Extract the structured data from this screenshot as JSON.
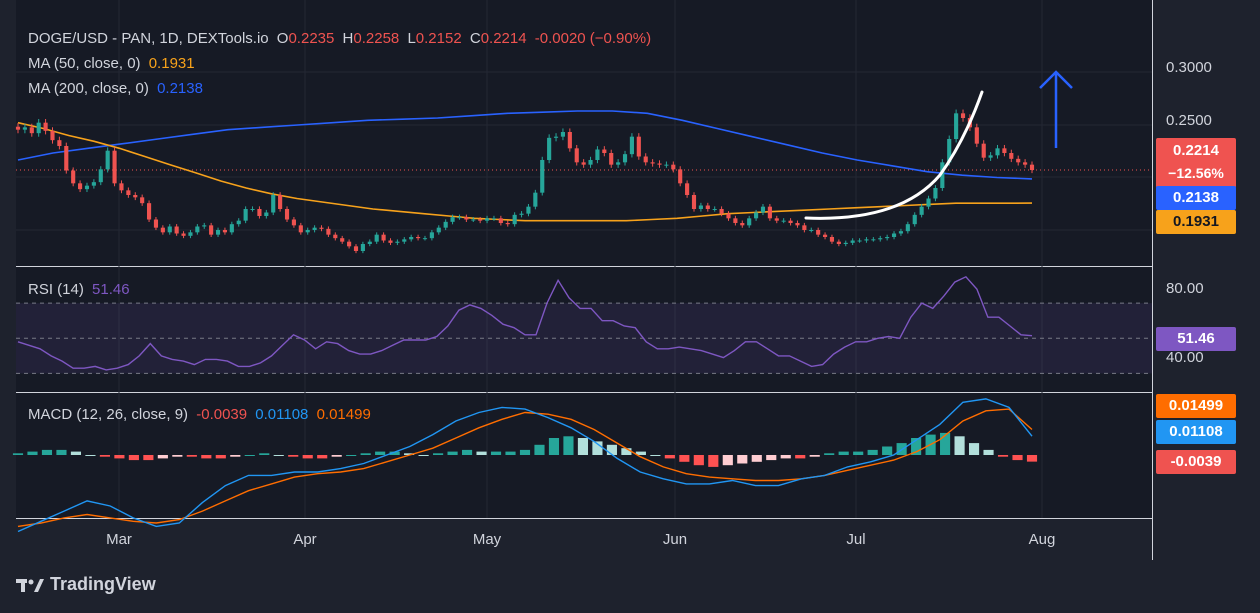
{
  "brand": "TradingView",
  "legend": {
    "symbol": "DOGE/USD - PAN, 1D, DEXTools.io",
    "o_label": "O",
    "o": "0.2235",
    "h_label": "H",
    "h": "0.2258",
    "l_label": "L",
    "l": "0.2152",
    "c_label": "C",
    "c": "0.2214",
    "change": "-0.0020 (−0.90%)",
    "ma50_label": "MA (50, close, 0)",
    "ma50": "0.1931",
    "ma200_label": "MA (200, close, 0)",
    "ma200": "0.2138",
    "rsi_label": "RSI (14)",
    "rsi": "51.46",
    "macd_label": "MACD (12, 26, close, 9)",
    "macd_hist": "-0.0039",
    "macd_line": "0.01108",
    "macd_signal": "0.01499"
  },
  "badges": {
    "price": "0.2214",
    "price_pct": "−12.56%",
    "ma200": "0.2138",
    "ma50": "0.1931",
    "rsi": "51.46",
    "macd_signal": "0.01499",
    "macd_line": "0.01108",
    "macd_hist": "-0.0039"
  },
  "colors": {
    "bg": "#1e222d",
    "up": "#26a69a",
    "down": "#ef5350",
    "ma50": "#f7a21b",
    "ma200": "#2962ff",
    "rsi": "#7e57c2",
    "macd": "#2196f3",
    "signal": "#ff6d00",
    "arrow": "#2962ff"
  },
  "chart_data": [
    {
      "type": "candlestick",
      "name": "DOGE/USD",
      "y_ticks": [
        "0.3000",
        "0.2500"
      ],
      "ylim": [
        0.14,
        0.35
      ],
      "x_ticks": [
        "Mar",
        "Apr",
        "May",
        "Jun",
        "Jul",
        "Aug"
      ],
      "close": [
        0.256,
        0.258,
        0.253,
        0.262,
        0.255,
        0.247,
        0.242,
        0.221,
        0.21,
        0.205,
        0.208,
        0.211,
        0.222,
        0.238,
        0.21,
        0.204,
        0.2,
        0.198,
        0.193,
        0.179,
        0.172,
        0.168,
        0.173,
        0.167,
        0.165,
        0.168,
        0.173,
        0.174,
        0.166,
        0.17,
        0.168,
        0.175,
        0.178,
        0.188,
        0.188,
        0.182,
        0.185,
        0.2,
        0.188,
        0.179,
        0.174,
        0.168,
        0.17,
        0.172,
        0.171,
        0.166,
        0.163,
        0.16,
        0.156,
        0.152,
        0.158,
        0.16,
        0.166,
        0.161,
        0.159,
        0.16,
        0.162,
        0.164,
        0.163,
        0.163,
        0.168,
        0.172,
        0.177,
        0.181,
        0.181,
        0.179,
        0.179,
        0.178,
        0.18,
        0.18,
        0.176,
        0.175,
        0.183,
        0.184,
        0.19,
        0.202,
        0.23,
        0.249,
        0.25,
        0.254,
        0.24,
        0.228,
        0.226,
        0.23,
        0.239,
        0.236,
        0.226,
        0.228,
        0.235,
        0.25,
        0.233,
        0.228,
        0.227,
        0.226,
        0.226,
        0.222,
        0.21,
        0.2,
        0.188,
        0.191,
        0.188,
        0.188,
        0.184,
        0.18,
        0.176,
        0.174,
        0.18,
        0.185,
        0.19,
        0.18,
        0.178,
        0.178,
        0.176,
        0.174,
        0.17,
        0.17,
        0.166,
        0.164,
        0.16,
        0.158,
        0.159,
        0.161,
        0.161,
        0.162,
        0.162,
        0.163,
        0.164,
        0.167,
        0.169,
        0.175,
        0.183,
        0.19,
        0.197,
        0.206,
        0.228,
        0.248,
        0.27,
        0.266,
        0.258,
        0.244,
        0.232,
        0.234,
        0.24,
        0.236,
        0.231,
        0.228,
        0.226,
        0.2214
      ],
      "ma50": [
        0.262,
        0.257,
        0.251,
        0.246,
        0.24,
        0.233,
        0.226,
        0.219,
        0.212,
        0.206,
        0.201,
        0.197,
        0.194,
        0.191,
        0.188,
        0.186,
        0.184,
        0.182,
        0.18,
        0.179,
        0.178,
        0.178,
        0.178,
        0.178,
        0.178,
        0.179,
        0.18,
        0.182,
        0.184,
        0.185,
        0.186,
        0.187,
        0.188,
        0.189,
        0.19,
        0.191,
        0.192,
        0.193,
        0.193,
        0.193,
        0.1931
      ],
      "ma200": [
        0.23,
        0.236,
        0.24,
        0.244,
        0.248,
        0.252,
        0.256,
        0.258,
        0.26,
        0.262,
        0.264,
        0.265,
        0.266,
        0.268,
        0.27,
        0.271,
        0.272,
        0.272,
        0.27,
        0.264,
        0.257,
        0.25,
        0.243,
        0.236,
        0.23,
        0.225,
        0.22,
        0.217,
        0.215,
        0.2138
      ],
      "annotations": [
        "rounded-bottom curve",
        "upward arrow"
      ]
    },
    {
      "type": "line",
      "name": "RSI (14)",
      "y_ticks": [
        "80.00",
        "40.00"
      ],
      "ylim": [
        20,
        90
      ],
      "bands": [
        30,
        50,
        70
      ],
      "values": [
        48,
        46,
        44,
        40,
        37,
        33,
        33,
        34,
        32,
        33,
        35,
        40,
        47,
        40,
        38,
        37,
        35,
        38,
        38,
        37,
        34,
        34,
        36,
        40,
        46,
        52,
        49,
        44,
        48,
        47,
        43,
        41,
        41,
        43,
        46,
        49,
        49,
        49,
        51,
        57,
        66,
        69,
        67,
        63,
        58,
        56,
        52,
        52,
        70,
        83,
        73,
        67,
        67,
        60,
        60,
        57,
        56,
        48,
        44,
        44,
        45,
        44,
        43,
        41,
        39,
        43,
        48,
        48,
        44,
        40,
        40,
        37,
        34,
        35,
        41,
        45,
        48,
        48,
        50,
        51,
        50,
        62,
        70,
        67,
        74,
        82,
        85,
        78,
        62,
        62,
        57,
        52,
        51.46
      ]
    },
    {
      "type": "bar+line",
      "name": "MACD (12, 26, close, 9)",
      "histogram": [
        0.001,
        0.002,
        0.003,
        0.003,
        0.002,
        0.0,
        -0.001,
        -0.002,
        -0.003,
        -0.003,
        -0.002,
        -0.001,
        -0.001,
        -0.002,
        -0.002,
        -0.001,
        0.0,
        0.001,
        0.0,
        -0.001,
        -0.002,
        -0.002,
        -0.001,
        0.0,
        0.001,
        0.002,
        0.002,
        0.001,
        0.0,
        0.001,
        0.002,
        0.003,
        0.002,
        0.002,
        0.002,
        0.003,
        0.006,
        0.01,
        0.011,
        0.01,
        0.008,
        0.006,
        0.004,
        0.002,
        0.0,
        -0.002,
        -0.004,
        -0.006,
        -0.007,
        -0.006,
        -0.005,
        -0.004,
        -0.003,
        -0.002,
        -0.002,
        -0.001,
        0.001,
        0.002,
        0.002,
        0.003,
        0.005,
        0.007,
        0.01,
        0.012,
        0.013,
        0.011,
        0.007,
        0.003,
        -0.001,
        -0.003,
        -0.0039
      ],
      "macd": [
        -0.045,
        -0.039,
        -0.033,
        -0.027,
        -0.03,
        -0.037,
        -0.042,
        -0.04,
        -0.028,
        -0.018,
        -0.012,
        -0.012,
        -0.01,
        -0.01,
        -0.008,
        -0.005,
        0.0,
        0.005,
        0.012,
        0.02,
        0.025,
        0.028,
        0.027,
        0.022,
        0.016,
        0.008,
        -0.002,
        -0.01,
        -0.014,
        -0.017,
        -0.017,
        -0.015,
        -0.018,
        -0.018,
        -0.014,
        -0.012,
        -0.007,
        -0.004,
        0.0,
        0.009,
        0.018,
        0.031,
        0.033,
        0.028,
        0.01108
      ],
      "signal": [
        -0.042,
        -0.04,
        -0.037,
        -0.035,
        -0.037,
        -0.039,
        -0.04,
        -0.038,
        -0.033,
        -0.027,
        -0.021,
        -0.017,
        -0.013,
        -0.011,
        -0.01,
        -0.008,
        -0.004,
        0.0,
        0.004,
        0.01,
        0.016,
        0.021,
        0.025,
        0.024,
        0.021,
        0.015,
        0.007,
        -0.001,
        -0.007,
        -0.011,
        -0.013,
        -0.014,
        -0.015,
        -0.015,
        -0.014,
        -0.012,
        -0.009,
        -0.006,
        -0.003,
        0.002,
        0.009,
        0.02,
        0.026,
        0.027,
        0.01499
      ]
    }
  ]
}
